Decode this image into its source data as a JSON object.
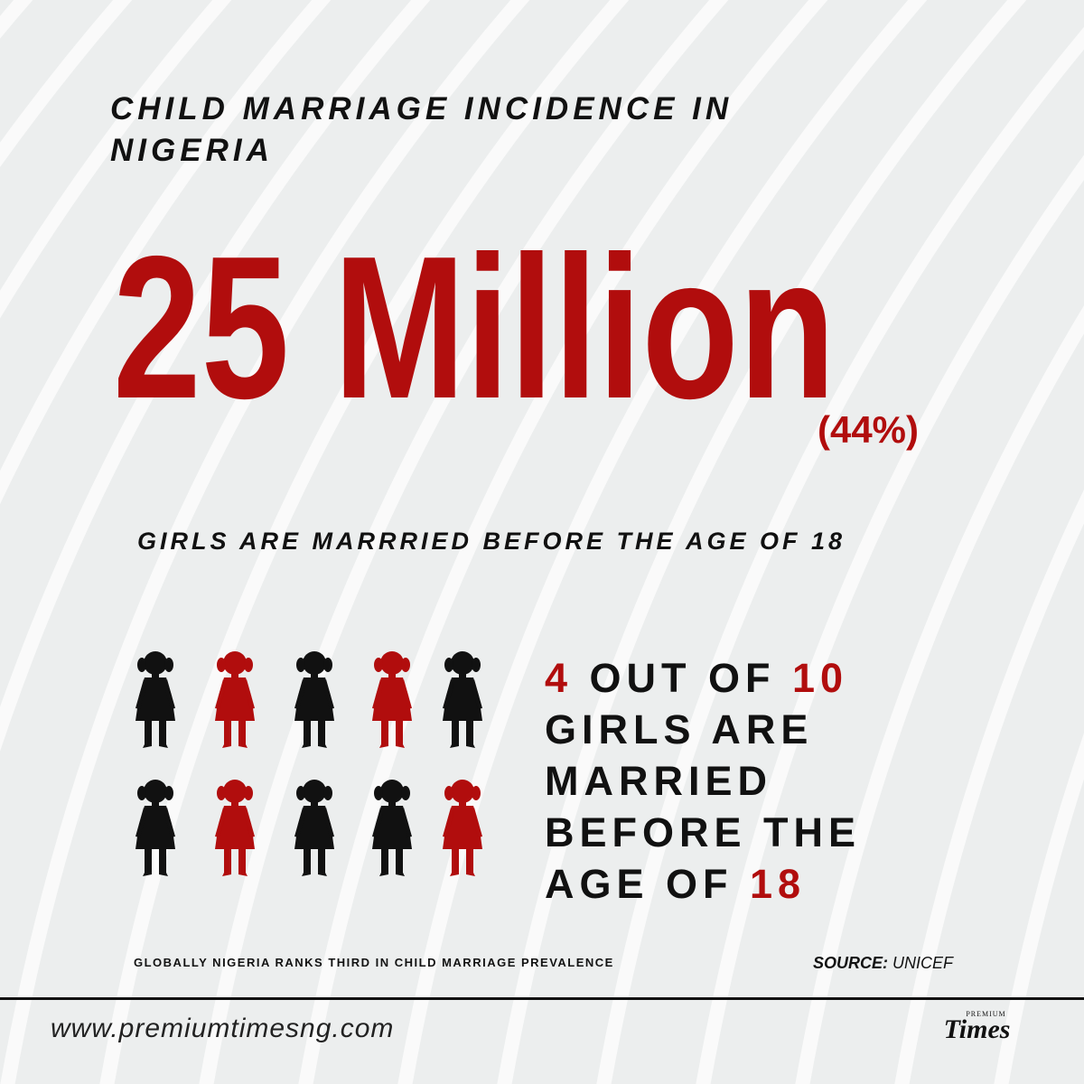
{
  "title": "CHILD MARRIAGE INCIDENCE IN NIGERIA",
  "headline": "25 Million",
  "percent": "(44%)",
  "subtitle": "GIRLS ARE MARRRIED BEFORE THE AGE OF 18",
  "pictogram": {
    "figures": [
      "#111111",
      "#b10d0d",
      "#111111",
      "#b10d0d",
      "#111111",
      "#111111",
      "#b10d0d",
      "#111111",
      "#111111",
      "#b10d0d"
    ]
  },
  "statement": {
    "lines": [
      [
        {
          "text": "4",
          "color": "#b10d0d"
        },
        {
          "text": " OUT OF ",
          "color": "#111111"
        },
        {
          "text": "10",
          "color": "#b10d0d"
        }
      ],
      [
        {
          "text": "GIRLS ARE",
          "color": "#111111"
        }
      ],
      [
        {
          "text": "MARRIED",
          "color": "#111111"
        }
      ],
      [
        {
          "text": "BEFORE THE",
          "color": "#111111"
        }
      ],
      [
        {
          "text": "AGE OF ",
          "color": "#111111"
        },
        {
          "text": "18",
          "color": "#b10d0d"
        }
      ]
    ]
  },
  "footnote": "GLOBALLY NIGERIA RANKS THIRD IN CHILD MARRIAGE PREVALENCE",
  "source": {
    "label": "SOURCE:",
    "value": "UNICEF"
  },
  "footer": {
    "url": "www.premiumtimesng.com",
    "logo_top": "PREMIUM",
    "logo_main": "Times"
  }
}
